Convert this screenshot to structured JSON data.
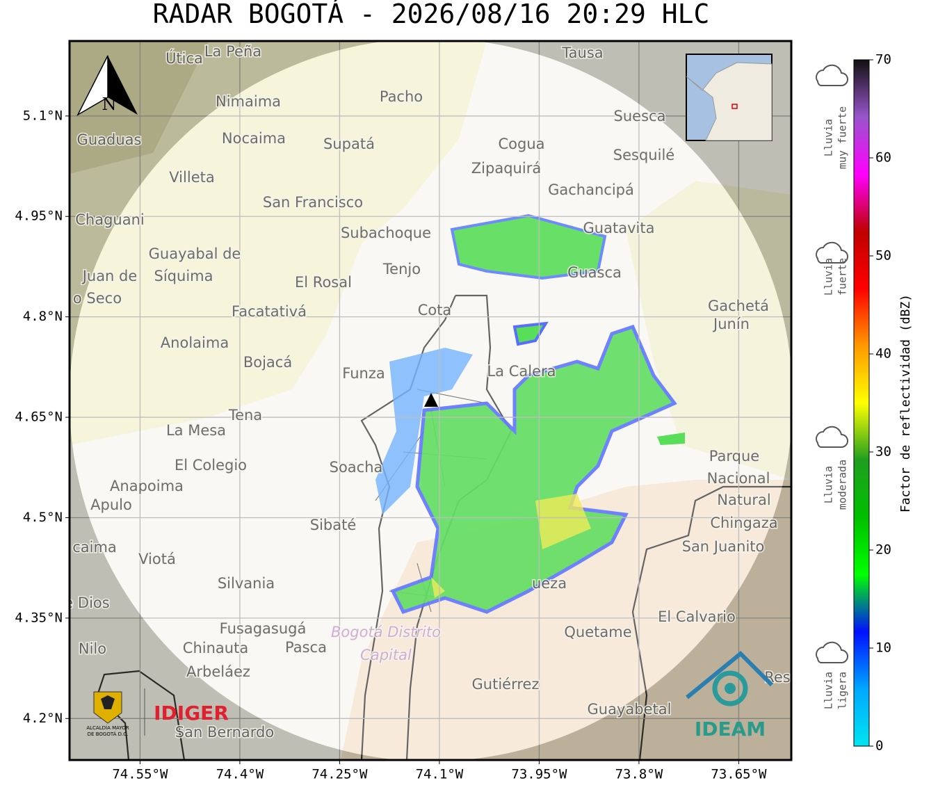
{
  "map": {
    "title": "RADAR BOGOTÁ - 2026/08/16 20:29 HLC",
    "ylim": [
      4.138,
      5.212
    ],
    "xlim": [
      -74.656,
      -73.571
    ],
    "yticks": [
      {
        "value": 5.1,
        "label": "5.1°N"
      },
      {
        "value": 4.95,
        "label": "4.95°N"
      },
      {
        "value": 4.8,
        "label": "4.8°N"
      },
      {
        "value": 4.65,
        "label": "4.65°N"
      },
      {
        "value": 4.5,
        "label": "4.5°N"
      },
      {
        "value": 4.35,
        "label": "4.35°N"
      },
      {
        "value": 4.2,
        "label": "4.2°N"
      }
    ],
    "xticks": [
      {
        "value": -74.55,
        "label": "74.55°W"
      },
      {
        "value": -74.4,
        "label": "74.4°W"
      },
      {
        "value": -74.25,
        "label": "74.25°W"
      },
      {
        "value": -74.1,
        "label": "74.1°W"
      },
      {
        "value": -73.95,
        "label": "73.95°W"
      },
      {
        "value": -73.8,
        "label": "73.8°W"
      },
      {
        "value": -73.65,
        "label": "73.65°W"
      }
    ],
    "grid": true,
    "compass": "N",
    "places": [
      "Útica",
      "La Peña",
      "Tausa",
      "Pacho",
      "Nimaima",
      "Suesca",
      "Guaduas",
      "Nocaima",
      "Supatá",
      "Cogua",
      "Sesquilé",
      "Zipaquirá",
      "Villeta",
      "Gachancipá",
      "San Francisco",
      "Chaguani",
      "Guatavita",
      "Subachoque",
      "Guayabal de",
      "Síquima",
      "Juan de",
      "Tenjo",
      "Guasca",
      "El Rosal",
      "o Seco",
      "Cota",
      "Facatativá",
      "Gachetá",
      "Junín",
      "Anolaima",
      "Bojacá",
      "Funza",
      "La Calera",
      "Tena",
      "La Mesa",
      "Parque",
      "Nacional",
      "Natural",
      "Chingaza",
      "El Colegio",
      "Soacha",
      "Anapoima",
      "Apulo",
      "Sibaté",
      "San Juanito",
      "caima",
      "Viotá",
      "Silvania",
      "ueza",
      "e Dios",
      "El Calvario",
      "Fusagasugá",
      "Quetame",
      "Nilo",
      "Chinauta",
      "Pasca",
      "Arbeláez",
      "Gutiérrez",
      "Res",
      "Guayabetal",
      "San Bernardo"
    ],
    "district": [
      "Bogotá Distrito",
      "Capital"
    ],
    "logos": {
      "alcaldia": [
        "ALCALDÍA MAYOR",
        "DE BOGOTÁ D.C."
      ],
      "idiger": "IDIGER",
      "ideam": "IDEAM"
    }
  },
  "colorbar": {
    "range": [
      0,
      70
    ],
    "ticks": [
      0,
      10,
      20,
      30,
      40,
      50,
      60,
      70
    ],
    "label": "Factor de reflectividad (dBZ)",
    "colors": [
      "#00e5f0",
      "#00a8ff",
      "#0010ff",
      "#00ff00",
      "#00c000",
      "#1f9e1f",
      "#ffff00",
      "#ff9900",
      "#ff0000",
      "#c00000",
      "#ff00ff",
      "#9955cc",
      "#111111"
    ],
    "rain_classes": [
      [
        "Lluvia",
        "muy fuerte"
      ],
      [
        "Lluvia",
        "fuerte"
      ],
      [
        "Lluvia",
        "moderada"
      ],
      [
        "Lluvia",
        "ligera"
      ]
    ]
  }
}
